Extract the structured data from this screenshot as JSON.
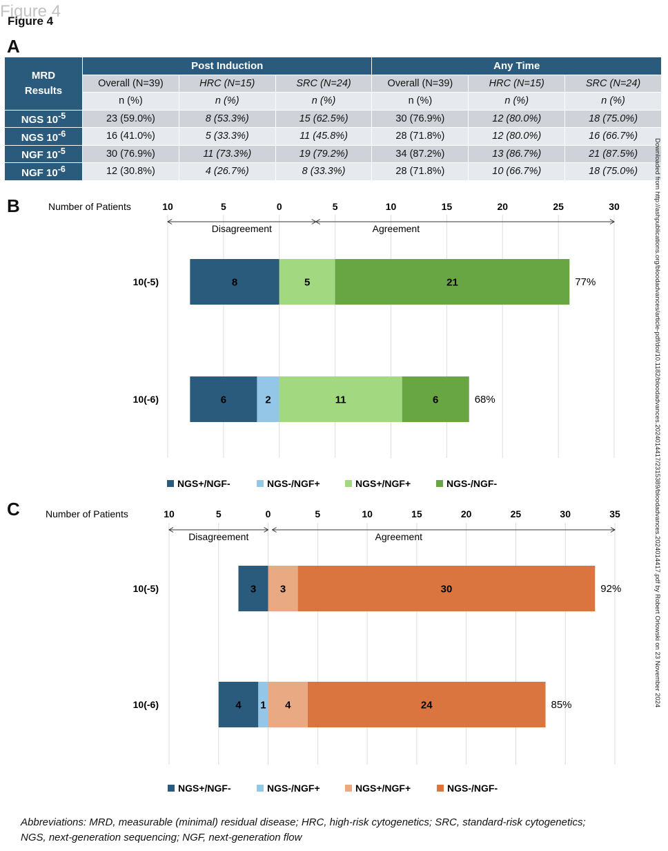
{
  "figure": {
    "ghost_label": "Figure 4",
    "title": "Figure 4"
  },
  "panels": {
    "a": "A",
    "b": "B",
    "c": "C"
  },
  "table": {
    "header_mrd": [
      "MRD",
      "Results"
    ],
    "groups": [
      "Post Induction",
      "Any Time"
    ],
    "subheaders": [
      "Overall (N=39)",
      "HRC (N=15)",
      "SRC (N=24)",
      "Overall (N=39)",
      "HRC (N=15)",
      "SRC (N=24)"
    ],
    "units": [
      "n (%)",
      "n (%)",
      "n (%)",
      "n (%)",
      "n (%)",
      "n (%)"
    ],
    "rows": [
      {
        "base": "NGS 10",
        "exp": "-5",
        "cells": [
          "23 (59.0%)",
          "8 (53.3%)",
          "15 (62.5%)",
          "30 (76.9%)",
          "12 (80.0%)",
          "18 (75.0%)"
        ]
      },
      {
        "base": "NGS 10",
        "exp": "-6",
        "cells": [
          "16 (41.0%)",
          "5 (33.3%)",
          "11 (45.8%)",
          "28 (71.8%)",
          "12 (80.0%)",
          "16 (66.7%)"
        ]
      },
      {
        "base": "NGF 10",
        "exp": "-5",
        "cells": [
          "30 (76.9%)",
          "11 (73.3%)",
          "19 (79.2%)",
          "34 (87.2%)",
          "13 (86.7%)",
          "21 (87.5%)"
        ]
      },
      {
        "base": "NGF 10",
        "exp": "-6",
        "cells": [
          "12 (30.8%)",
          "4 (26.7%)",
          "8 (33.3%)",
          "28 (71.8%)",
          "10 (66.7%)",
          "18 (75.0%)"
        ]
      }
    ]
  },
  "side_note": "Downloaded from http://ashpublications.org/bloodadvances/article-pdf/doi/10.1182/bloodadvances.2024014417/2315389/bloodadvances.2024014417.pdf by Robert Orlowski on 23 November 2024",
  "abbreviations": [
    "Abbreviations: MRD, measurable (minimal) residual disease; HRC, high-risk cytogenetics; SRC, standard-risk cytogenetics;",
    "NGS, next-generation sequencing; NGF, next-generation flow"
  ],
  "chart_data": [
    {
      "type": "bar",
      "orientation": "horizontal-stacked-diverging",
      "axis_title": "Number of Patients",
      "tick_labels": [
        "10",
        "5",
        "0",
        "5",
        "10",
        "15",
        "20",
        "25",
        "30"
      ],
      "xlim": [
        -10,
        30
      ],
      "grid": true,
      "regions": [
        "Disagreement",
        "Agreement"
      ],
      "categories": [
        "10(-5)",
        "10(-6)"
      ],
      "series": [
        {
          "name": "NGS+/NGF-",
          "color": "#2b5b7c",
          "side": "disagreement",
          "values": [
            8,
            6
          ]
        },
        {
          "name": "NGS-/NGF+",
          "color": "#93c6e7",
          "side": "disagreement",
          "values": [
            0,
            2
          ]
        },
        {
          "name": "NGS+/NGF+",
          "color": "#a2d87f",
          "side": "agreement",
          "values": [
            5,
            11
          ]
        },
        {
          "name": "NGS-/NGF-",
          "color": "#67a642",
          "side": "agreement",
          "values": [
            21,
            6
          ]
        }
      ],
      "agreement_percent": [
        "77%",
        "68%"
      ],
      "legend_position": "bottom"
    },
    {
      "type": "bar",
      "orientation": "horizontal-stacked-diverging",
      "axis_title": "Number of Patients",
      "tick_labels": [
        "10",
        "5",
        "0",
        "5",
        "10",
        "15",
        "20",
        "25",
        "30",
        "35"
      ],
      "xlim": [
        -10,
        35
      ],
      "grid": true,
      "regions": [
        "Disagreement",
        "Agreement"
      ],
      "categories": [
        "10(-5)",
        "10(-6)"
      ],
      "series": [
        {
          "name": "NGS+/NGF-",
          "color": "#2b5b7c",
          "side": "disagreement",
          "values": [
            3,
            4
          ]
        },
        {
          "name": "NGS-/NGF+",
          "color": "#93c6e7",
          "side": "disagreement",
          "values": [
            0,
            1
          ]
        },
        {
          "name": "NGS+/NGF+",
          "color": "#e8a983",
          "side": "agreement",
          "values": [
            3,
            4
          ]
        },
        {
          "name": "NGS-/NGF-",
          "color": "#db7540",
          "side": "agreement",
          "values": [
            30,
            24
          ]
        }
      ],
      "agreement_percent": [
        "92%",
        "85%"
      ],
      "legend_position": "bottom"
    }
  ]
}
